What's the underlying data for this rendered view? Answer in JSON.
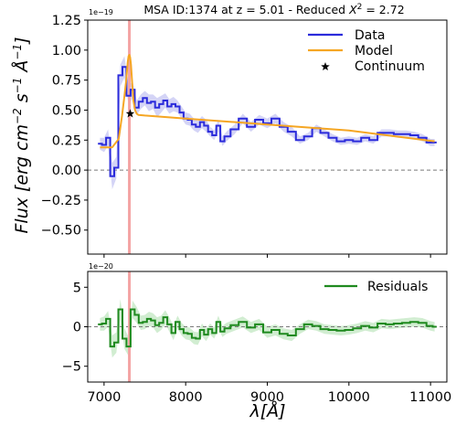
{
  "chart_data": [
    {
      "type": "line",
      "panel": "spectrum",
      "title": "MSA ID:1374 at z = 5.01 - Reduced χ² = 2.72",
      "title_parts": {
        "main": "MSA ID:1374 at z = 5.01 - Reduced ",
        "chi": "X",
        "sup": "2",
        "tail": " = 2.72"
      },
      "ylabel": "Flux [erg cm⁻² s⁻¹ Å⁻¹]",
      "ylabel_parts": {
        "a": "Flux [erg cm",
        "e1": "−2",
        "b": " s",
        "e2": "−1",
        "c": " Å",
        "e3": "−1",
        "d": "]"
      },
      "y_scale_label": "1e−19",
      "xlim": [
        6800,
        11200
      ],
      "ylim": [
        -0.7,
        1.25
      ],
      "xticks": [
        "7000",
        "8000",
        "9000",
        "10000",
        "11000"
      ],
      "xtick_values": [
        7000,
        8000,
        9000,
        10000,
        11000
      ],
      "yticks": [
        "1.25",
        "1.00",
        "0.75",
        "0.50",
        "0.25",
        "0.00",
        "−0.25",
        "−0.50"
      ],
      "ytick_values": [
        1.25,
        1.0,
        0.75,
        0.5,
        0.25,
        0.0,
        -0.25,
        -0.5
      ],
      "zero_line": 0,
      "marker_line_x": 7310,
      "legend": {
        "placement": "upper right",
        "items": [
          "Data",
          "Model",
          "Continuum"
        ]
      },
      "series": [
        {
          "name": "Data",
          "style": "steps-mid",
          "color": "#2b2bdb",
          "x": [
            6950,
            7000,
            7050,
            7100,
            7150,
            7200,
            7250,
            7300,
            7350,
            7400,
            7450,
            7500,
            7550,
            7600,
            7650,
            7700,
            7750,
            7800,
            7850,
            7900,
            7950,
            8000,
            8050,
            8100,
            8150,
            8200,
            8250,
            8300,
            8350,
            8400,
            8450,
            8500,
            8600,
            8700,
            8800,
            8900,
            9000,
            9100,
            9200,
            9300,
            9400,
            9500,
            9600,
            9700,
            9800,
            9900,
            10000,
            10100,
            10200,
            10300,
            10400,
            10500,
            10600,
            10700,
            10800,
            10900,
            11000,
            11050
          ],
          "y": [
            0.22,
            0.21,
            0.27,
            -0.05,
            0.02,
            0.79,
            0.86,
            0.62,
            0.67,
            0.52,
            0.57,
            0.6,
            0.56,
            0.57,
            0.52,
            0.55,
            0.58,
            0.53,
            0.55,
            0.53,
            0.48,
            0.43,
            0.42,
            0.38,
            0.36,
            0.4,
            0.37,
            0.32,
            0.29,
            0.37,
            0.24,
            0.28,
            0.34,
            0.43,
            0.36,
            0.42,
            0.39,
            0.43,
            0.36,
            0.32,
            0.25,
            0.28,
            0.35,
            0.31,
            0.27,
            0.24,
            0.25,
            0.24,
            0.27,
            0.25,
            0.31,
            0.31,
            0.3,
            0.3,
            0.29,
            0.27,
            0.23,
            0.23
          ],
          "error": [
            0.05,
            0.06,
            0.07,
            0.11,
            0.09,
            0.09,
            0.09,
            0.08,
            0.07,
            0.06,
            0.06,
            0.06,
            0.07,
            0.06,
            0.08,
            0.07,
            0.06,
            0.06,
            0.06,
            0.05,
            0.05,
            0.05,
            0.05,
            0.05,
            0.05,
            0.05,
            0.05,
            0.04,
            0.04,
            0.05,
            0.04,
            0.04,
            0.04,
            0.04,
            0.04,
            0.04,
            0.04,
            0.04,
            0.04,
            0.04,
            0.03,
            0.03,
            0.03,
            0.03,
            0.03,
            0.03,
            0.03,
            0.03,
            0.03,
            0.03,
            0.03,
            0.03,
            0.03,
            0.03,
            0.03,
            0.03,
            0.03,
            0.03
          ]
        },
        {
          "name": "Model",
          "style": "line",
          "color": "#f5a623",
          "x": [
            6950,
            7100,
            7180,
            7220,
            7250,
            7270,
            7290,
            7300,
            7310,
            7320,
            7330,
            7345,
            7360,
            7380,
            7400,
            7420,
            7500,
            8000,
            9000,
            10000,
            11050
          ],
          "y": [
            0.19,
            0.19,
            0.26,
            0.45,
            0.62,
            0.74,
            0.9,
            0.95,
            0.96,
            0.94,
            0.88,
            0.72,
            0.58,
            0.5,
            0.47,
            0.46,
            0.455,
            0.43,
            0.38,
            0.33,
            0.24
          ]
        },
        {
          "name": "Continuum",
          "style": "marker",
          "marker": "star",
          "color": "#000000",
          "x": [
            7320
          ],
          "y": [
            0.47
          ]
        }
      ]
    },
    {
      "type": "line",
      "panel": "residuals",
      "y_scale_label": "1e−20",
      "xlabel": "λ[Å]",
      "xlabel_parts": {
        "lambda": "λ",
        "unit": "[Å]"
      },
      "xlim": [
        6800,
        11200
      ],
      "ylim": [
        -7,
        7
      ],
      "xticks": [
        "7000",
        "8000",
        "9000",
        "10000",
        "11000"
      ],
      "xtick_values": [
        7000,
        8000,
        9000,
        10000,
        11000
      ],
      "yticks": [
        "5",
        "0",
        "−5"
      ],
      "ytick_values": [
        5,
        0,
        -5
      ],
      "zero_line": 0,
      "marker_line_x": 7310,
      "legend": {
        "placement": "upper right",
        "items": [
          "Residuals"
        ]
      },
      "series": [
        {
          "name": "Residuals",
          "style": "steps-mid",
          "color": "#1f8a1f",
          "x": [
            6950,
            7000,
            7050,
            7100,
            7150,
            7200,
            7250,
            7300,
            7350,
            7400,
            7450,
            7500,
            7550,
            7600,
            7650,
            7700,
            7750,
            7800,
            7850,
            7900,
            7950,
            8000,
            8050,
            8100,
            8150,
            8200,
            8250,
            8300,
            8350,
            8400,
            8450,
            8500,
            8600,
            8700,
            8800,
            8900,
            9000,
            9100,
            9200,
            9300,
            9400,
            9500,
            9600,
            9700,
            9800,
            9900,
            10000,
            10100,
            10200,
            10300,
            10400,
            10500,
            10600,
            10700,
            10800,
            10900,
            11000,
            11050
          ],
          "y": [
            0.3,
            0.4,
            1.0,
            -2.5,
            -2.0,
            2.2,
            -1.5,
            -2.5,
            2.2,
            1.5,
            0.5,
            0.6,
            1.0,
            0.8,
            0.2,
            0.5,
            1.2,
            0.3,
            -0.8,
            0.6,
            -0.3,
            -0.8,
            -0.9,
            -1.4,
            -1.5,
            -0.4,
            -1.0,
            -0.3,
            -0.8,
            0.6,
            -0.6,
            -0.2,
            0.2,
            0.6,
            -0.1,
            0.3,
            -0.7,
            -0.4,
            -0.9,
            -1.1,
            -0.3,
            0.3,
            0.1,
            -0.3,
            -0.4,
            -0.5,
            -0.4,
            -0.2,
            0.1,
            -0.1,
            0.4,
            0.3,
            0.4,
            0.5,
            0.6,
            0.5,
            0.1,
            0.0
          ],
          "error": [
            0.8,
            0.9,
            1.0,
            1.4,
            1.3,
            1.3,
            1.3,
            1.2,
            1.1,
            1.0,
            0.9,
            0.9,
            0.9,
            0.9,
            1.0,
            0.9,
            0.9,
            0.9,
            0.9,
            0.8,
            0.8,
            0.8,
            0.8,
            0.8,
            0.8,
            0.8,
            0.8,
            0.7,
            0.7,
            0.8,
            0.7,
            0.7,
            0.7,
            0.7,
            0.7,
            0.7,
            0.7,
            0.7,
            0.7,
            0.7,
            0.6,
            0.6,
            0.6,
            0.6,
            0.6,
            0.6,
            0.6,
            0.6,
            0.6,
            0.6,
            0.6,
            0.6,
            0.6,
            0.6,
            0.6,
            0.6,
            0.6,
            0.6
          ]
        }
      ]
    }
  ],
  "colors": {
    "data": "#2b2bdb",
    "data_band": "#c9c9f4",
    "model": "#f5a623",
    "residual": "#1f8a1f",
    "residual_band": "#c6e8c6",
    "marker_line": "#f4a4a4",
    "zero_line": "#7a7a7a"
  }
}
